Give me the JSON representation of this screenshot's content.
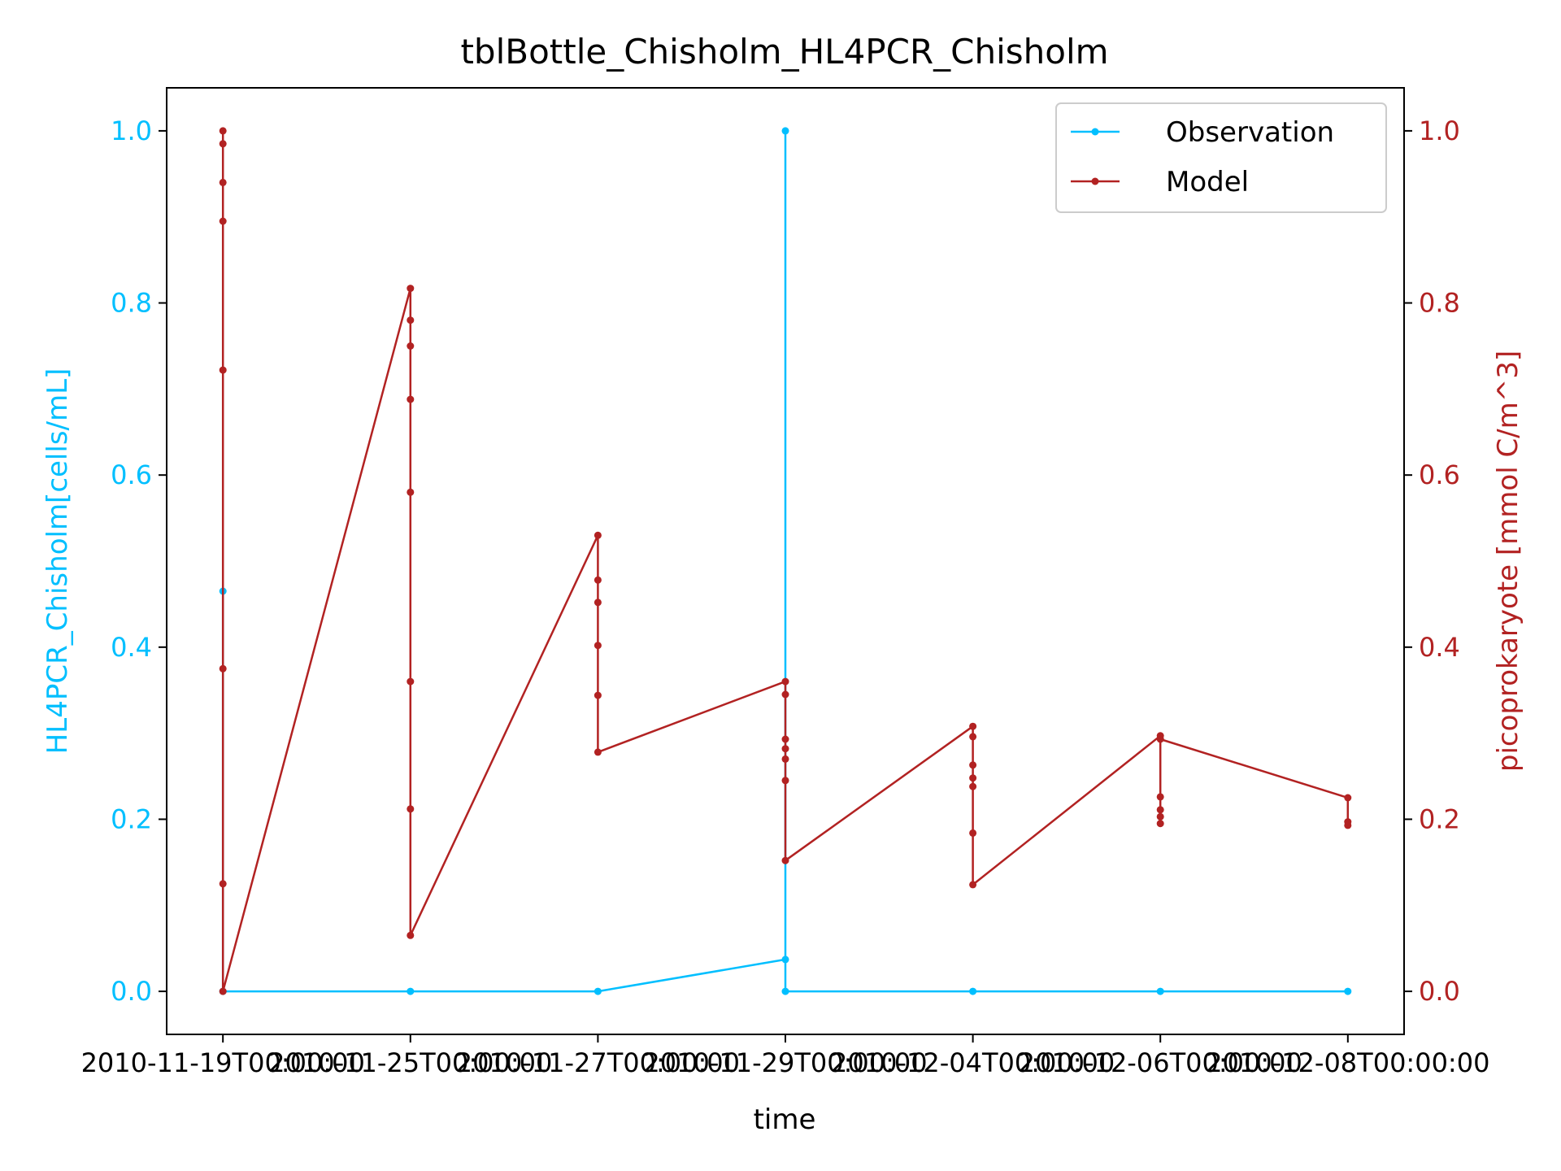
{
  "chart_data": {
    "type": "line",
    "title": "tblBottle_Chisholm_HL4PCR_Chisholm",
    "xlabel": "time",
    "ylabel_left": "HL4PCR_Chisholm[cells/mL]",
    "ylabel_right": "picoprokaryote [mmol C/m^3]",
    "ylim_left": [
      -0.05,
      1.05
    ],
    "ylim_right": [
      -0.05,
      1.05
    ],
    "xlim": [
      -0.3,
      6.3
    ],
    "x_tick_positions": [
      0,
      1,
      2,
      3,
      4,
      5,
      6
    ],
    "x_tick_labels": [
      "2010-11-19T00:00:00",
      "2010-11-25T00:00:00",
      "2010-11-27T00:00:00",
      "2010-11-29T00:00:00",
      "2010-12-04T00:00:00",
      "2010-12-06T00:00:00",
      "2010-12-08T00:00:00"
    ],
    "y_ticks_left": [
      "0.0",
      "0.2",
      "0.4",
      "0.6",
      "0.8",
      "1.0"
    ],
    "y_ticks_right": [
      "0.0",
      "0.2",
      "0.4",
      "0.6",
      "0.8",
      "1.0"
    ],
    "legend": {
      "position": "top-right",
      "entries": [
        "Observation",
        "Model"
      ]
    },
    "series": [
      {
        "name": "Observation",
        "axis": "left",
        "color": "#00bfff",
        "x": [
          0,
          0,
          1,
          2,
          3,
          3,
          3,
          4,
          5,
          6
        ],
        "y": [
          0.465,
          0.0,
          0.0,
          0.0,
          0.037,
          1.0,
          0.0,
          0.0,
          0.0,
          0.0
        ]
      },
      {
        "name": "Model",
        "axis": "right",
        "color": "#b22222",
        "x": [
          0,
          0,
          0,
          0,
          0,
          0,
          0,
          0,
          1,
          1,
          1,
          1,
          1,
          1,
          1,
          1,
          2,
          2,
          2,
          2,
          2,
          2,
          3,
          3,
          3,
          3,
          3,
          3,
          3,
          4,
          4,
          4,
          4,
          4,
          4,
          4,
          5,
          5,
          5,
          5,
          5,
          5,
          6,
          6,
          6
        ],
        "y": [
          1.0,
          0.985,
          0.94,
          0.895,
          0.722,
          0.375,
          0.125,
          0.0,
          0.817,
          0.78,
          0.75,
          0.688,
          0.58,
          0.36,
          0.212,
          0.065,
          0.53,
          0.478,
          0.452,
          0.402,
          0.344,
          0.278,
          0.36,
          0.345,
          0.293,
          0.282,
          0.27,
          0.245,
          0.152,
          0.308,
          0.296,
          0.263,
          0.248,
          0.238,
          0.184,
          0.124,
          0.297,
          0.226,
          0.211,
          0.203,
          0.195,
          0.293,
          0.225,
          0.197,
          0.193
        ]
      }
    ]
  }
}
